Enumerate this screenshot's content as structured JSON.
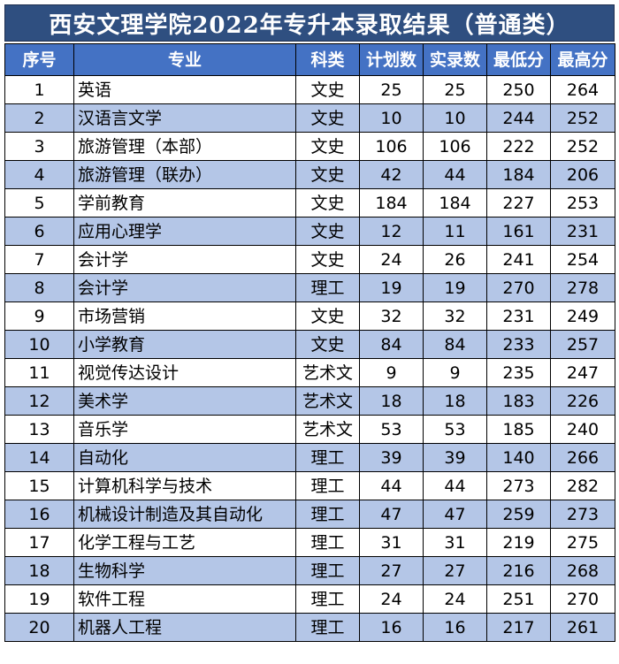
{
  "title": "西安文理学院2022年专升本录取结果（普通类）",
  "headers": [
    "序号",
    "专业",
    "科类",
    "计划数",
    "实录数",
    "最低分",
    "最高分"
  ],
  "rows": [
    [
      "1",
      "英语",
      "文史",
      "25",
      "25",
      "250",
      "264"
    ],
    [
      "2",
      "汉语言文学",
      "文史",
      "10",
      "10",
      "244",
      "252"
    ],
    [
      "3",
      "旅游管理（本部）",
      "文史",
      "106",
      "106",
      "222",
      "252"
    ],
    [
      "4",
      "旅游管理（联办）",
      "文史",
      "42",
      "44",
      "184",
      "206"
    ],
    [
      "5",
      "学前教育",
      "文史",
      "184",
      "184",
      "227",
      "253"
    ],
    [
      "6",
      "应用心理学",
      "文史",
      "12",
      "11",
      "161",
      "231"
    ],
    [
      "7",
      "会计学",
      "文史",
      "24",
      "26",
      "241",
      "254"
    ],
    [
      "8",
      "会计学",
      "理工",
      "19",
      "19",
      "270",
      "278"
    ],
    [
      "9",
      "市场营销",
      "文史",
      "32",
      "32",
      "231",
      "249"
    ],
    [
      "10",
      "小学教育",
      "文史",
      "84",
      "84",
      "233",
      "257"
    ],
    [
      "11",
      "视觉传达设计",
      "艺术文",
      "9",
      "9",
      "235",
      "247"
    ],
    [
      "12",
      "美术学",
      "艺术文",
      "18",
      "18",
      "183",
      "226"
    ],
    [
      "13",
      "音乐学",
      "艺术文",
      "53",
      "53",
      "185",
      "240"
    ],
    [
      "14",
      "自动化",
      "理工",
      "39",
      "39",
      "140",
      "266"
    ],
    [
      "15",
      "计算机科学与技术",
      "理工",
      "44",
      "44",
      "273",
      "282"
    ],
    [
      "16",
      "机械设计制造及其自动化",
      "理工",
      "47",
      "47",
      "259",
      "273"
    ],
    [
      "17",
      "化学工程与工艺",
      "理工",
      "31",
      "31",
      "219",
      "275"
    ],
    [
      "18",
      "生物科学",
      "理工",
      "27",
      "27",
      "216",
      "268"
    ],
    [
      "19",
      "软件工程",
      "理工",
      "24",
      "24",
      "251",
      "270"
    ],
    [
      "20",
      "机器人工程",
      "理工",
      "16",
      "16",
      "217",
      "261"
    ]
  ],
  "colors": {
    "title_bg": "#2f4f80",
    "header_bg": "#4472c4",
    "band_bg": "#b4c6e7"
  }
}
